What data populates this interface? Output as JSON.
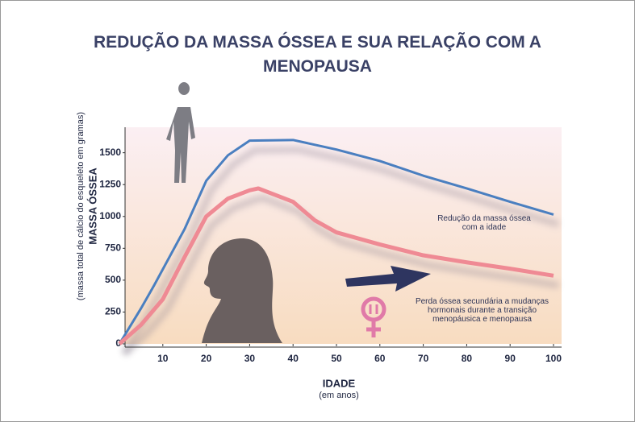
{
  "chart_data": {
    "type": "line",
    "title": "REDUÇÃO DA MASSA ÓSSEA E SUA RELAÇÃO COM A MENOPAUSA",
    "y_label": "MASSA ÓSSEA",
    "y_sublabel": "(massa total de cálcio do esqueleto em gramas)",
    "x_label": "IDADE",
    "x_sublabel": "(em anos)",
    "xlim": [
      0,
      100
    ],
    "xticks": [
      10,
      20,
      30,
      40,
      50,
      60,
      70,
      80,
      90,
      100
    ],
    "ylim": [
      0,
      1700
    ],
    "yticks": [
      0,
      250,
      500,
      750,
      1000,
      1250,
      1500
    ],
    "series": [
      {
        "color": "#4a7fc0",
        "x": [
          0,
          5,
          8,
          15,
          20,
          25,
          30,
          40,
          50,
          60,
          70,
          80,
          90,
          100
        ],
        "values": [
          0,
          280,
          460,
          900,
          1280,
          1480,
          1595,
          1600,
          1525,
          1435,
          1320,
          1220,
          1115,
          1015
        ]
      },
      {
        "color": "#ef8a94",
        "x": [
          0,
          5,
          10,
          15,
          20,
          25,
          30,
          32,
          40,
          45,
          50,
          60,
          70,
          80,
          90,
          100
        ],
        "values": [
          0,
          150,
          350,
          680,
          1000,
          1140,
          1205,
          1220,
          1115,
          970,
          875,
          780,
          695,
          640,
          590,
          535
        ]
      }
    ],
    "annotations": [
      "Redução da massa óssea com a idade",
      "Perda óssea secundária a mudanças hormonais durante a transição menopáusica e menopausa"
    ]
  }
}
